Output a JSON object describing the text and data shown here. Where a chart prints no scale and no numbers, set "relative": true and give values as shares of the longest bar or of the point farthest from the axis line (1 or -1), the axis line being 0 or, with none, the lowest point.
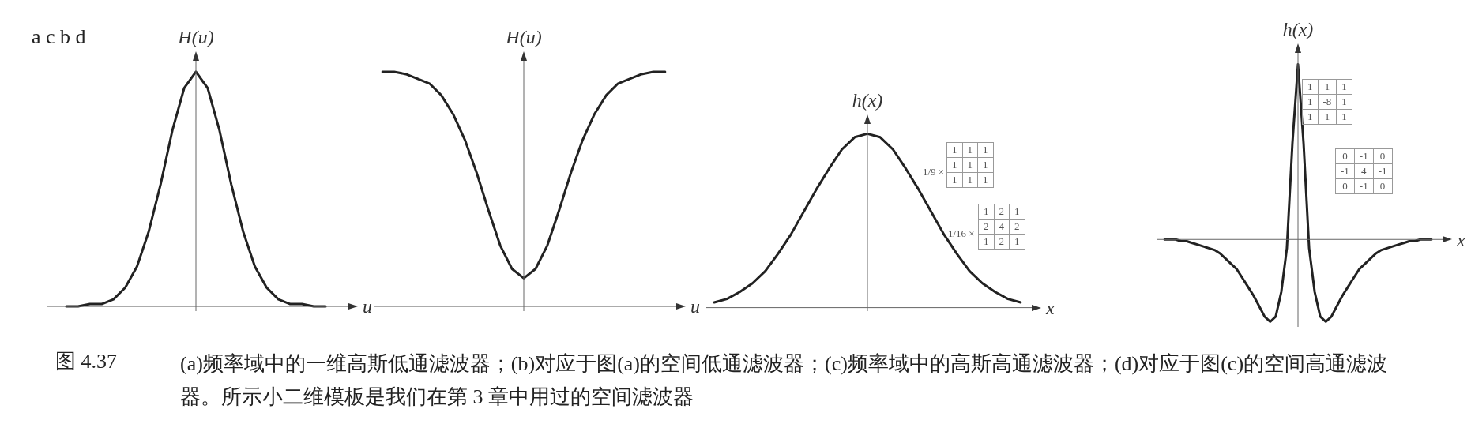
{
  "chart_data": [
    {
      "type": "line",
      "relative": true,
      "ylabel": "H(u)",
      "xlabel": "u",
      "legend": false,
      "categories": [
        null,
        null,
        null,
        null,
        null,
        null,
        null,
        null,
        null,
        null,
        null,
        null,
        null,
        null,
        null,
        null,
        null,
        null,
        null,
        null,
        null,
        null,
        null,
        null,
        null
      ],
      "series": [
        {
          "color": "#222222",
          "values": [
            null,
            0,
            0,
            0.01,
            0.01,
            0.03,
            0.08,
            0.17,
            0.32,
            0.52,
            0.75,
            0.93,
            1,
            0.93,
            0.75,
            0.52,
            0.32,
            0.17,
            0.08,
            0.03,
            0.01,
            0.01,
            0,
            0,
            null
          ]
        }
      ],
      "annotations": [
        "a c b d",
        "图 4.37",
        "(a)频率域中的一维高斯低通滤波器；(b)对应于图(a)的空间低通滤波器；(c)频率域中的高斯高通滤波器；(d)对应于图(c)的空间高通滤波器。所示小二维模板是我们在第 3 章中用过的空间滤波器"
      ]
    },
    {
      "type": "line",
      "relative": true,
      "ylabel": "H(u)",
      "xlabel": "u",
      "legend": false,
      "categories": [
        null,
        null,
        null,
        null,
        null,
        null,
        null,
        null,
        null,
        null,
        null,
        null,
        null,
        null,
        null,
        null,
        null,
        null,
        null,
        null,
        null,
        null,
        null,
        null,
        null
      ],
      "series": [
        {
          "color": "#222222",
          "values": [
            1,
            1,
            0.99,
            0.97,
            0.95,
            0.9,
            0.82,
            0.71,
            0.57,
            0.41,
            0.26,
            0.16,
            0.12,
            0.16,
            0.26,
            0.41,
            0.57,
            0.71,
            0.82,
            0.9,
            0.95,
            0.97,
            0.99,
            1,
            1
          ]
        }
      ]
    },
    {
      "type": "line",
      "relative": true,
      "ylabel": "h(x)",
      "xlabel": "x",
      "legend": false,
      "categories": [
        null,
        null,
        null,
        null,
        null,
        null,
        null,
        null,
        null,
        null,
        null,
        null,
        null,
        null,
        null,
        null,
        null,
        null,
        null,
        null,
        null,
        null,
        null,
        null,
        null
      ],
      "series": [
        {
          "color": "#222222",
          "values": [
            0.03,
            0.05,
            0.09,
            0.14,
            0.21,
            0.31,
            0.42,
            0.55,
            0.68,
            0.8,
            0.91,
            0.98,
            1,
            0.98,
            0.91,
            0.8,
            0.68,
            0.55,
            0.42,
            0.31,
            0.21,
            0.14,
            0.09,
            0.05,
            0.03
          ]
        }
      ],
      "annotations": [
        "1/9 ×",
        "1 1 1\n1 1 1\n1 1 1",
        "1/16 ×",
        "1 2 1\n2 4 2\n1 2 1"
      ]
    },
    {
      "type": "line",
      "relative": true,
      "ylabel": "h(x)",
      "xlabel": "x",
      "legend": false,
      "categories": [
        null,
        null,
        null,
        null,
        null,
        null,
        null,
        null,
        null,
        null,
        null,
        null,
        null,
        null,
        null,
        null,
        null,
        null,
        null,
        null,
        null,
        null,
        null,
        null,
        null,
        null,
        null,
        null,
        null,
        null,
        null,
        null,
        null,
        null,
        null,
        null,
        null,
        null,
        null,
        null,
        null,
        null,
        null,
        null,
        null,
        null,
        null,
        null,
        null
      ],
      "series": [
        {
          "color": "#222222",
          "values": [
            0,
            0,
            0,
            -0.01,
            -0.01,
            -0.02,
            -0.03,
            -0.04,
            -0.05,
            -0.06,
            -0.08,
            -0.11,
            -0.14,
            -0.17,
            -0.22,
            -0.27,
            -0.32,
            -0.38,
            -0.44,
            -0.47,
            -0.44,
            -0.3,
            -0.05,
            0.55,
            1,
            0.55,
            -0.05,
            -0.3,
            -0.44,
            -0.47,
            -0.44,
            -0.38,
            -0.32,
            -0.27,
            -0.22,
            -0.17,
            -0.14,
            -0.11,
            -0.08,
            -0.06,
            -0.05,
            -0.04,
            -0.03,
            -0.02,
            -0.01,
            -0.01,
            0,
            0,
            0
          ]
        }
      ],
      "annotations": [
        "1 1 1\n1 -8 1\n1 1 1",
        "0 -1 0\n-1 4 -1\n0 -1 0"
      ]
    }
  ]
}
